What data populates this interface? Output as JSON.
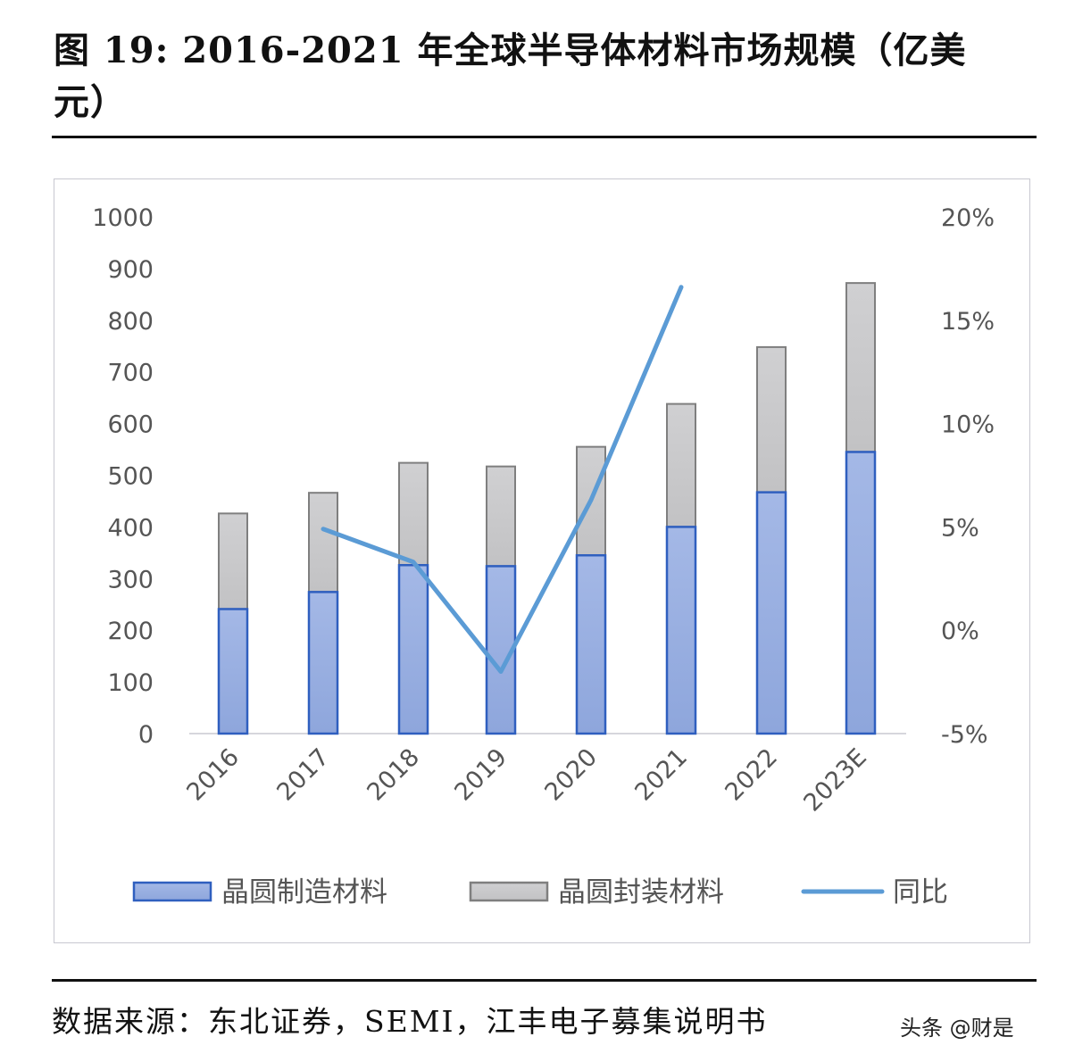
{
  "header": {
    "title_line1": "图 19: 2016-2021 年全球半导体材料市场规模（亿美",
    "title_line2": "元）"
  },
  "legend": {
    "items": [
      {
        "label": "晶圆制造材料",
        "type": "bar",
        "color": "#8FAADC"
      },
      {
        "label": "晶圆封装材料",
        "type": "bar",
        "color": "#C8C8C8"
      },
      {
        "label": "同比",
        "type": "line",
        "color": "#5B9BD5"
      }
    ]
  },
  "footer": {
    "source": "数据来源：东北证券，SEMI，江丰电子募集说明书",
    "watermark": "头条 @财是"
  },
  "chart_data": {
    "type": "bar",
    "stacked": true,
    "title": "2016-2021 年全球半导体材料市场规模（亿美元）",
    "xlabel": "",
    "ylabel": "",
    "categories": [
      "2016",
      "2017",
      "2018",
      "2019",
      "2020",
      "2021",
      "2022",
      "2023E"
    ],
    "series": [
      {
        "name": "晶圆制造材料",
        "type": "bar",
        "axis": "left",
        "values": [
          241,
          274,
          326,
          324,
          345,
          400,
          467,
          545
        ]
      },
      {
        "name": "晶圆封装材料",
        "type": "bar",
        "axis": "left",
        "values": [
          185,
          192,
          198,
          193,
          210,
          238,
          281,
          327
        ]
      },
      {
        "name": "同比",
        "type": "line",
        "axis": "right",
        "unit": "%",
        "values": [
          null,
          4.9,
          3.3,
          -2.0,
          6.3,
          16.6,
          null,
          null
        ]
      }
    ],
    "totals": [
      426,
      466,
      524,
      517,
      555,
      638,
      748,
      872
    ],
    "ylim": [
      0,
      1000
    ],
    "yticks": [
      "0",
      "100",
      "200",
      "300",
      "400",
      "500",
      "600",
      "700",
      "800",
      "900",
      "1000"
    ],
    "y2lim": [
      -5,
      20
    ],
    "y2ticks": [
      "-5%",
      "0%",
      "5%",
      "10%",
      "15%",
      "20%"
    ],
    "grid": false,
    "legend_position": "bottom"
  }
}
